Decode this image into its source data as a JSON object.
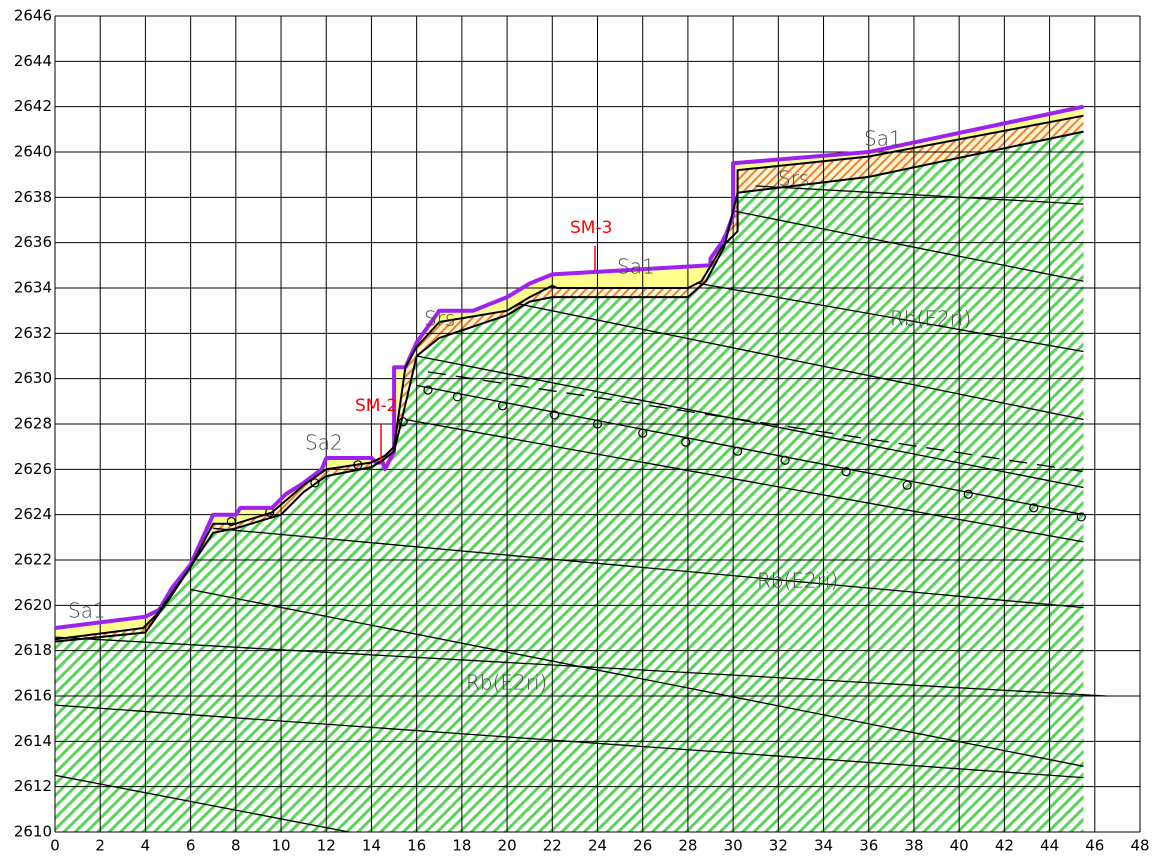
{
  "chart_data": {
    "type": "profile",
    "xlim": [
      0,
      48
    ],
    "ylim": [
      2610,
      2646
    ],
    "xticks": [
      0,
      2,
      4,
      6,
      8,
      10,
      12,
      14,
      16,
      18,
      20,
      22,
      24,
      26,
      28,
      30,
      32,
      34,
      36,
      38,
      40,
      42,
      44,
      46,
      48
    ],
    "yticks": [
      2610,
      2612,
      2614,
      2616,
      2618,
      2620,
      2622,
      2624,
      2626,
      2628,
      2630,
      2632,
      2634,
      2636,
      2638,
      2640,
      2642,
      2644,
      2646
    ],
    "grid": true,
    "series": [
      {
        "color": "#a020f0",
        "x": [
          0,
          4,
          4.6,
          5.2,
          6,
          7,
          8,
          8.2,
          9.6,
          10.2,
          11,
          11.8,
          12,
          14,
          14.2,
          14.5,
          14.6,
          15,
          15,
          15.5,
          16,
          17,
          18.5,
          20,
          21,
          22,
          29,
          29,
          29.5,
          29.7,
          30,
          30,
          36,
          45.5
        ],
        "values": [
          2619,
          2619.5,
          2619.8,
          2620.8,
          2621.8,
          2624,
          2624,
          2624.3,
          2624.3,
          2624.9,
          2625.4,
          2626,
          2626.5,
          2626.5,
          2626.3,
          2626.3,
          2626,
          2626.8,
          2630.5,
          2630.5,
          2631.6,
          2633,
          2633,
          2633.6,
          2634.2,
          2634.6,
          2635,
          2635.3,
          2636,
          2636.4,
          2637.2,
          2639.5,
          2640,
          2642
        ]
      },
      {
        "color": "#000000",
        "x": [
          0,
          3.9,
          4.5,
          6,
          7,
          8,
          9.6,
          11,
          12,
          14,
          14.6,
          15,
          15.5,
          16,
          17,
          20,
          21,
          22,
          22.2,
          28,
          28.6,
          29.5,
          30.2,
          30.2,
          36,
          45.5
        ],
        "values": [
          2618.5,
          2619,
          2619.6,
          2621.7,
          2623.6,
          2623.6,
          2624.1,
          2625.3,
          2626,
          2626.3,
          2626.6,
          2627,
          2630.5,
          2631.4,
          2632.5,
          2633,
          2633.6,
          2634.1,
          2634,
          2634,
          2634.3,
          2635.8,
          2636.5,
          2639.2,
          2639.8,
          2641.6
        ]
      },
      {
        "color": "#000000",
        "x": [
          0,
          4,
          5,
          6,
          7,
          8,
          10,
          11,
          12,
          14,
          14.5,
          15,
          15.3,
          16,
          17,
          20,
          21,
          22,
          28,
          28.8,
          29.6,
          30.2,
          31,
          36,
          45.5
        ],
        "values": [
          2618.4,
          2618.8,
          2620.2,
          2621.7,
          2623.2,
          2623.4,
          2624,
          2625,
          2625.7,
          2626.1,
          2626.4,
          2626.8,
          2628,
          2631,
          2631.8,
          2632.8,
          2633.4,
          2633.6,
          2633.6,
          2634.3,
          2635.8,
          2638.2,
          2638.3,
          2638.9,
          2640.9
        ]
      }
    ],
    "bedding": [
      {
        "x": [
          31,
          45.5
        ],
        "values": [
          2638.5,
          2637.7
        ]
      },
      {
        "x": [
          30,
          45.5
        ],
        "values": [
          2637.4,
          2634.3
        ]
      },
      {
        "x": [
          28.5,
          45.5
        ],
        "values": [
          2634.2,
          2631.2
        ]
      },
      {
        "x": [
          20.5,
          45.5
        ],
        "values": [
          2633.3,
          2628.2
        ]
      },
      {
        "x": [
          16,
          45.5
        ],
        "values": [
          2631,
          2625.2
        ]
      },
      {
        "x": [
          16,
          45.5
        ],
        "values": [
          2629.7,
          2624
        ]
      },
      {
        "x": [
          15.5,
          45.5
        ],
        "values": [
          2628.2,
          2622.8
        ]
      },
      {
        "x": [
          7,
          45.5
        ],
        "values": [
          2623.4,
          2619.9
        ]
      },
      {
        "x": [
          6,
          45.5
        ],
        "values": [
          2620.7,
          2612.9
        ]
      },
      {
        "x": [
          0,
          46.5
        ],
        "values": [
          2618.6,
          2616
        ]
      },
      {
        "x": [
          0,
          45.5
        ],
        "values": [
          2615.6,
          2612.4
        ]
      },
      {
        "x": [
          0,
          13
        ],
        "values": [
          2612.5,
          2610
        ]
      }
    ],
    "dashed": {
      "x": [
        16.5,
        45.5
      ],
      "values": [
        2630.3,
        2625.9
      ]
    },
    "markers": {
      "x": [
        7.8,
        9.5,
        11.5,
        13.4,
        15.4,
        16.5,
        17.8,
        19.8,
        22.1,
        24,
        26,
        27.9,
        30.2,
        32.3,
        35,
        37.7,
        40.4,
        43.3,
        45.4
      ],
      "values": [
        2623.7,
        2624.1,
        2625.4,
        2626.2,
        2628.1,
        2629.5,
        2629.2,
        2628.8,
        2628.4,
        2628,
        2627.6,
        2627.2,
        2626.8,
        2626.4,
        2625.9,
        2625.3,
        2624.9,
        2624.3,
        2623.9
      ]
    },
    "annotations": [
      "Sa1",
      "Sa1",
      "Sa1",
      "Sa2",
      "Srs",
      "Srs",
      "Rb(E2ri)",
      "Rb(E2ri)",
      "Rb(E2ri)",
      "SM-2",
      "SM-3"
    ]
  }
}
